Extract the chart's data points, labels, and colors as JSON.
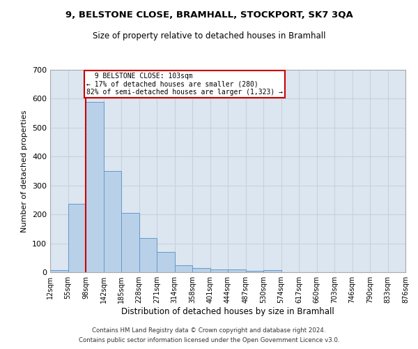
{
  "title1": "9, BELSTONE CLOSE, BRAMHALL, STOCKPORT, SK7 3QA",
  "title2": "Size of property relative to detached houses in Bramhall",
  "xlabel": "Distribution of detached houses by size in Bramhall",
  "ylabel": "Number of detached properties",
  "bar_values": [
    8,
    236,
    590,
    350,
    205,
    118,
    70,
    25,
    15,
    10,
    10,
    5,
    8,
    0,
    0,
    0,
    0,
    0,
    0,
    0
  ],
  "bin_labels": [
    "12sqm",
    "55sqm",
    "98sqm",
    "142sqm",
    "185sqm",
    "228sqm",
    "271sqm",
    "314sqm",
    "358sqm",
    "401sqm",
    "444sqm",
    "487sqm",
    "530sqm",
    "574sqm",
    "617sqm",
    "660sqm",
    "703sqm",
    "746sqm",
    "790sqm",
    "833sqm",
    "876sqm"
  ],
  "bin_edges": [
    0,
    1,
    2,
    3,
    4,
    5,
    6,
    7,
    8,
    9,
    10,
    11,
    12,
    13,
    14,
    15,
    16,
    17,
    18,
    19,
    20
  ],
  "bar_color": "#b8d0e8",
  "bar_edge_color": "#6699cc",
  "property_size_bin": 2,
  "annotation_line": "  9 BELSTONE CLOSE: 103sqm",
  "annotation_line2": "← 17% of detached houses are smaller (280)",
  "annotation_line3": "82% of semi-detached houses are larger (1,323) →",
  "annotation_box_color": "#ffffff",
  "annotation_box_edge_color": "#cc0000",
  "vline_color": "#cc0000",
  "ylim": [
    0,
    700
  ],
  "yticks": [
    0,
    100,
    200,
    300,
    400,
    500,
    600,
    700
  ],
  "grid_color": "#c8d0dc",
  "bg_color": "#dce6f0",
  "footnote1": "Contains HM Land Registry data © Crown copyright and database right 2024.",
  "footnote2": "Contains public sector information licensed under the Open Government Licence v3.0."
}
